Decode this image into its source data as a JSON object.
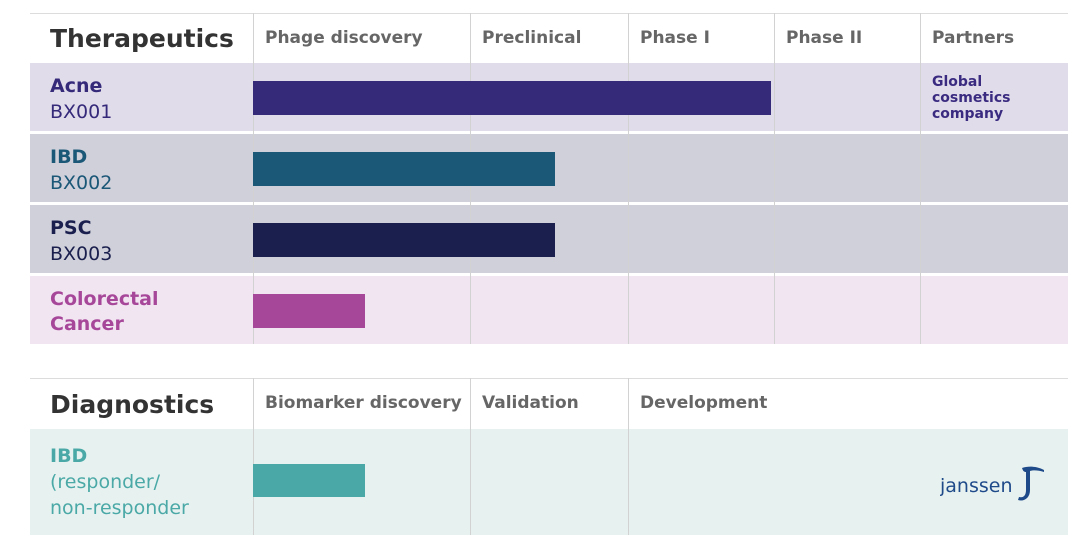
{
  "therapeutics": {
    "title": "Therapeutics",
    "columns": [
      "Phage discovery",
      "Preclinical",
      "Phase I",
      "Phase II",
      "Partners"
    ],
    "rows": [
      {
        "name": "Acne",
        "code": "BX001",
        "stage_progress": 0.636,
        "partner": "Global\ncosmetics\ncompany"
      },
      {
        "name": "IBD",
        "code": "BX002",
        "stage_progress": 0.37,
        "partner": ""
      },
      {
        "name": "PSC",
        "code": "BX003",
        "stage_progress": 0.37,
        "partner": ""
      },
      {
        "name": "Colorectal\nCancer",
        "code": "",
        "stage_progress": 0.138,
        "partner": ""
      }
    ]
  },
  "diagnostics": {
    "title": "Diagnostics",
    "columns": [
      "Biomarker discovery",
      "Validation",
      "Development"
    ],
    "rows": [
      {
        "name": "IBD",
        "detail": "(responder/\nnon-responder",
        "stage_progress": 0.138,
        "partner_logo": "janssen"
      }
    ]
  },
  "colors": {
    "acne": "#35297a",
    "ibd": "#1b5777",
    "psc": "#1a1f4d",
    "colorectal": "#a74799",
    "diag": "#4aa9a6",
    "acne_bg": "#e1dcea",
    "gray_bg": "#d0d0da",
    "colorectal_bg": "#f1e5f2",
    "diag_bg": "#e7f1f0"
  },
  "icons": {
    "partner_logo": "janssen-logo-icon"
  }
}
